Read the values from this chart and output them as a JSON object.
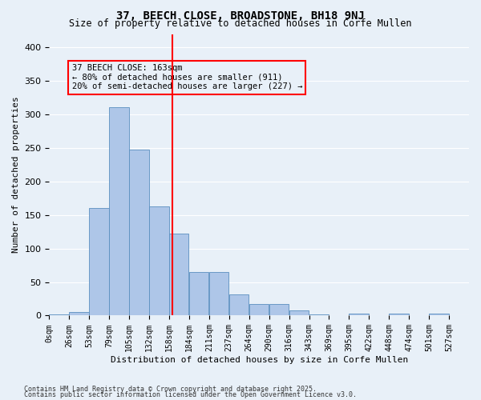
{
  "title1": "37, BEECH CLOSE, BROADSTONE, BH18 9NJ",
  "title2": "Size of property relative to detached houses in Corfe Mullen",
  "xlabel": "Distribution of detached houses by size in Corfe Mullen",
  "ylabel": "Number of detached properties",
  "bar_labels": [
    "0sqm",
    "26sqm",
    "53sqm",
    "79sqm",
    "105sqm",
    "132sqm",
    "158sqm",
    "184sqm",
    "211sqm",
    "237sqm",
    "264sqm",
    "290sqm",
    "316sqm",
    "343sqm",
    "369sqm",
    "395sqm",
    "422sqm",
    "448sqm",
    "474sqm",
    "501sqm",
    "527sqm"
  ],
  "bar_values": [
    2,
    5,
    160,
    311,
    248,
    163,
    122,
    65,
    65,
    32,
    17,
    17,
    8,
    2,
    0,
    3,
    0,
    3,
    0,
    3,
    0
  ],
  "bar_color": "#aec6e8",
  "bar_edge_color": "#5a8fc0",
  "property_sqm": 163,
  "bin_width": 26.5,
  "annotation_text": "37 BEECH CLOSE: 163sqm\n← 80% of detached houses are smaller (911)\n20% of semi-detached houses are larger (227) →",
  "vline_color": "red",
  "box_edge_color": "red",
  "background_color": "#e8f0f8",
  "grid_color": "white",
  "footer1": "Contains HM Land Registry data © Crown copyright and database right 2025.",
  "footer2": "Contains public sector information licensed under the Open Government Licence v3.0.",
  "ylim": [
    0,
    420
  ],
  "yticks": [
    0,
    50,
    100,
    150,
    200,
    250,
    300,
    350,
    400
  ]
}
